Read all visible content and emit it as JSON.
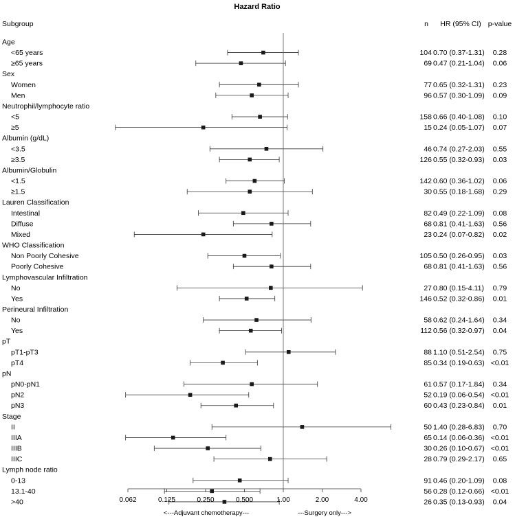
{
  "chart_data": {
    "type": "forest",
    "title": "Hazard Ratio",
    "columns": {
      "subgroup": "Subgroup",
      "n": "n",
      "hr": "HR (95% CI)",
      "p": "p-value"
    },
    "x_scale": "log2",
    "xlim": [
      0.062,
      4.0
    ],
    "x_ticks": [
      0.0625,
      0.125,
      0.25,
      0.5,
      1.0,
      2.0,
      4.0
    ],
    "x_tick_labels": [
      "0.062",
      "0.125",
      "0.250",
      "0.500",
      "1.00",
      "2.00",
      "4.00"
    ],
    "reference_line": 1.0,
    "footer_left": "<---Adjuvant chemotherapy---",
    "footer_right": "---Surgery only--->",
    "rows": [
      {
        "kind": "group",
        "label": "Age"
      },
      {
        "kind": "item",
        "label": "<65 years",
        "n": "104",
        "hr": 0.7,
        "lo": 0.37,
        "hi": 1.31,
        "hr_text": "0.70 (0.37-1.31)",
        "p": "0.28"
      },
      {
        "kind": "item",
        "label": "≥65 years",
        "n": "69",
        "hr": 0.47,
        "lo": 0.21,
        "hi": 1.04,
        "hr_text": "0.47 (0.21-1.04)",
        "p": "0.06"
      },
      {
        "kind": "group",
        "label": "Sex"
      },
      {
        "kind": "item",
        "label": "Women",
        "n": "77",
        "hr": 0.65,
        "lo": 0.32,
        "hi": 1.31,
        "hr_text": "0.65 (0.32-1.31)",
        "p": "0.23"
      },
      {
        "kind": "item",
        "label": "Men",
        "n": "96",
        "hr": 0.57,
        "lo": 0.3,
        "hi": 1.09,
        "hr_text": "0.57 (0.30-1.09)",
        "p": "0.09"
      },
      {
        "kind": "group",
        "label": "Neutrophil/lymphocyte ratio"
      },
      {
        "kind": "item",
        "label": "<5",
        "n": "158",
        "hr": 0.66,
        "lo": 0.4,
        "hi": 1.08,
        "hr_text": "0.66 (0.40-1.08)",
        "p": "0.10"
      },
      {
        "kind": "item",
        "label": "≥5",
        "n": "15",
        "hr": 0.24,
        "lo": 0.05,
        "hi": 1.07,
        "hr_text": "0.24 (0.05-1.07)",
        "p": "0.07"
      },
      {
        "kind": "group",
        "label": "Albumin (g/dL)"
      },
      {
        "kind": "item",
        "label": "<3.5",
        "n": "46",
        "hr": 0.74,
        "lo": 0.27,
        "hi": 2.03,
        "hr_text": "0.74 (0.27-2.03)",
        "p": "0.55"
      },
      {
        "kind": "item",
        "label": "≥3.5",
        "n": "126",
        "hr": 0.55,
        "lo": 0.32,
        "hi": 0.93,
        "hr_text": "0.55 (0.32-0.93)",
        "p": "0.03"
      },
      {
        "kind": "group",
        "label": "Albumin/Globulin"
      },
      {
        "kind": "item",
        "label": "<1.5",
        "n": "142",
        "hr": 0.6,
        "lo": 0.36,
        "hi": 1.02,
        "hr_text": "0.60 (0.36-1.02)",
        "p": "0.06"
      },
      {
        "kind": "item",
        "label": "≥1.5",
        "n": "30",
        "hr": 0.55,
        "lo": 0.18,
        "hi": 1.68,
        "hr_text": "0.55 (0.18-1.68)",
        "p": "0.29"
      },
      {
        "kind": "group",
        "label": "Lauren Classification"
      },
      {
        "kind": "item",
        "label": "Intestinal",
        "n": "82",
        "hr": 0.49,
        "lo": 0.22,
        "hi": 1.09,
        "hr_text": "0.49 (0.22-1.09)",
        "p": "0.08"
      },
      {
        "kind": "item",
        "label": "Diffuse",
        "n": "68",
        "hr": 0.81,
        "lo": 0.41,
        "hi": 1.63,
        "hr_text": "0.81 (0.41-1.63)",
        "p": "0.56"
      },
      {
        "kind": "item",
        "label": "Mixed",
        "n": "23",
        "hr": 0.24,
        "lo": 0.07,
        "hi": 0.82,
        "hr_text": "0.24 (0.07-0.82)",
        "p": "0.02"
      },
      {
        "kind": "group",
        "label": "WHO Classification"
      },
      {
        "kind": "item",
        "label": "Non Poorly Cohesive",
        "n": "105",
        "hr": 0.5,
        "lo": 0.26,
        "hi": 0.95,
        "hr_text": "0.50 (0.26-0.95)",
        "p": "0.03"
      },
      {
        "kind": "item",
        "label": "Poorly Cohesive",
        "n": "68",
        "hr": 0.81,
        "lo": 0.41,
        "hi": 1.63,
        "hr_text": "0.81 (0.41-1.63)",
        "p": "0.56"
      },
      {
        "kind": "group",
        "label": "Lymphovascular Infiltration"
      },
      {
        "kind": "item",
        "label": "No",
        "n": "27",
        "hr": 0.8,
        "lo": 0.15,
        "hi": 4.11,
        "hr_text": "0.80 (0.15-4.11)",
        "p": "0.79"
      },
      {
        "kind": "item",
        "label": "Yes",
        "n": "146",
        "hr": 0.52,
        "lo": 0.32,
        "hi": 0.86,
        "hr_text": "0.52 (0.32-0.86)",
        "p": "0.01"
      },
      {
        "kind": "group",
        "label": "Perineural Infiltration"
      },
      {
        "kind": "item",
        "label": "No",
        "n": "58",
        "hr": 0.62,
        "lo": 0.24,
        "hi": 1.64,
        "hr_text": "0.62 (0.24-1.64)",
        "p": "0.34"
      },
      {
        "kind": "item",
        "label": "Yes",
        "n": "112",
        "hr": 0.56,
        "lo": 0.32,
        "hi": 0.97,
        "hr_text": "0.56 (0.32-0.97)",
        "p": "0.04"
      },
      {
        "kind": "group",
        "label": "pT"
      },
      {
        "kind": "item",
        "label": "pT1-pT3",
        "n": "88",
        "hr": 1.1,
        "lo": 0.51,
        "hi": 2.54,
        "hr_text": "1.10 (0.51-2.54)",
        "p": "0.75"
      },
      {
        "kind": "item",
        "label": "pT4",
        "n": "85",
        "hr": 0.34,
        "lo": 0.19,
        "hi": 0.63,
        "hr_text": "0.34 (0.19-0.63)",
        "p": "<0.01"
      },
      {
        "kind": "group",
        "label": "pN"
      },
      {
        "kind": "item",
        "label": "pN0-pN1",
        "n": "61",
        "hr": 0.57,
        "lo": 0.17,
        "hi": 1.84,
        "hr_text": "0.57 (0.17-1.84)",
        "p": "0.34"
      },
      {
        "kind": "item",
        "label": "pN2",
        "n": "52",
        "hr": 0.19,
        "lo": 0.06,
        "hi": 0.54,
        "hr_text": "0.19 (0.06-0.54)",
        "p": "<0.01"
      },
      {
        "kind": "item",
        "label": "pN3",
        "n": "60",
        "hr": 0.43,
        "lo": 0.23,
        "hi": 0.84,
        "hr_text": "0.43 (0.23-0.84)",
        "p": "0.01"
      },
      {
        "kind": "group",
        "label": "Stage"
      },
      {
        "kind": "item",
        "label": "II",
        "n": "50",
        "hr": 1.4,
        "lo": 0.28,
        "hi": 6.83,
        "hr_text": "1.40 (0.28-6.83)",
        "p": "0.70"
      },
      {
        "kind": "item",
        "label": "IIIA",
        "n": "65",
        "hr": 0.14,
        "lo": 0.06,
        "hi": 0.36,
        "hr_text": "0.14 (0.06-0.36)",
        "p": "<0.01"
      },
      {
        "kind": "item",
        "label": "IIIB",
        "n": "30",
        "hr": 0.26,
        "lo": 0.1,
        "hi": 0.67,
        "hr_text": "0.26 (0.10-0.67)",
        "p": "<0.01"
      },
      {
        "kind": "item",
        "label": "IIIC",
        "n": "28",
        "hr": 0.79,
        "lo": 0.29,
        "hi": 2.17,
        "hr_text": "0.79 (0.29-2.17)",
        "p": "0.65"
      },
      {
        "kind": "group",
        "label": "Lymph node ratio"
      },
      {
        "kind": "item",
        "label": "0-13",
        "n": "91",
        "hr": 0.46,
        "lo": 0.2,
        "hi": 1.09,
        "hr_text": "0.46 (0.20-1.09)",
        "p": "0.08"
      },
      {
        "kind": "item",
        "label": "13.1-40",
        "n": "56",
        "hr": 0.28,
        "lo": 0.12,
        "hi": 0.66,
        "hr_text": "0.28 (0.12-0.66)",
        "p": "<0.01"
      },
      {
        "kind": "item",
        "label": ">40",
        "n": "26",
        "hr": 0.35,
        "lo": 0.13,
        "hi": 0.93,
        "hr_text": "0.35 (0.13-0.93)",
        "p": "0.04"
      }
    ]
  }
}
